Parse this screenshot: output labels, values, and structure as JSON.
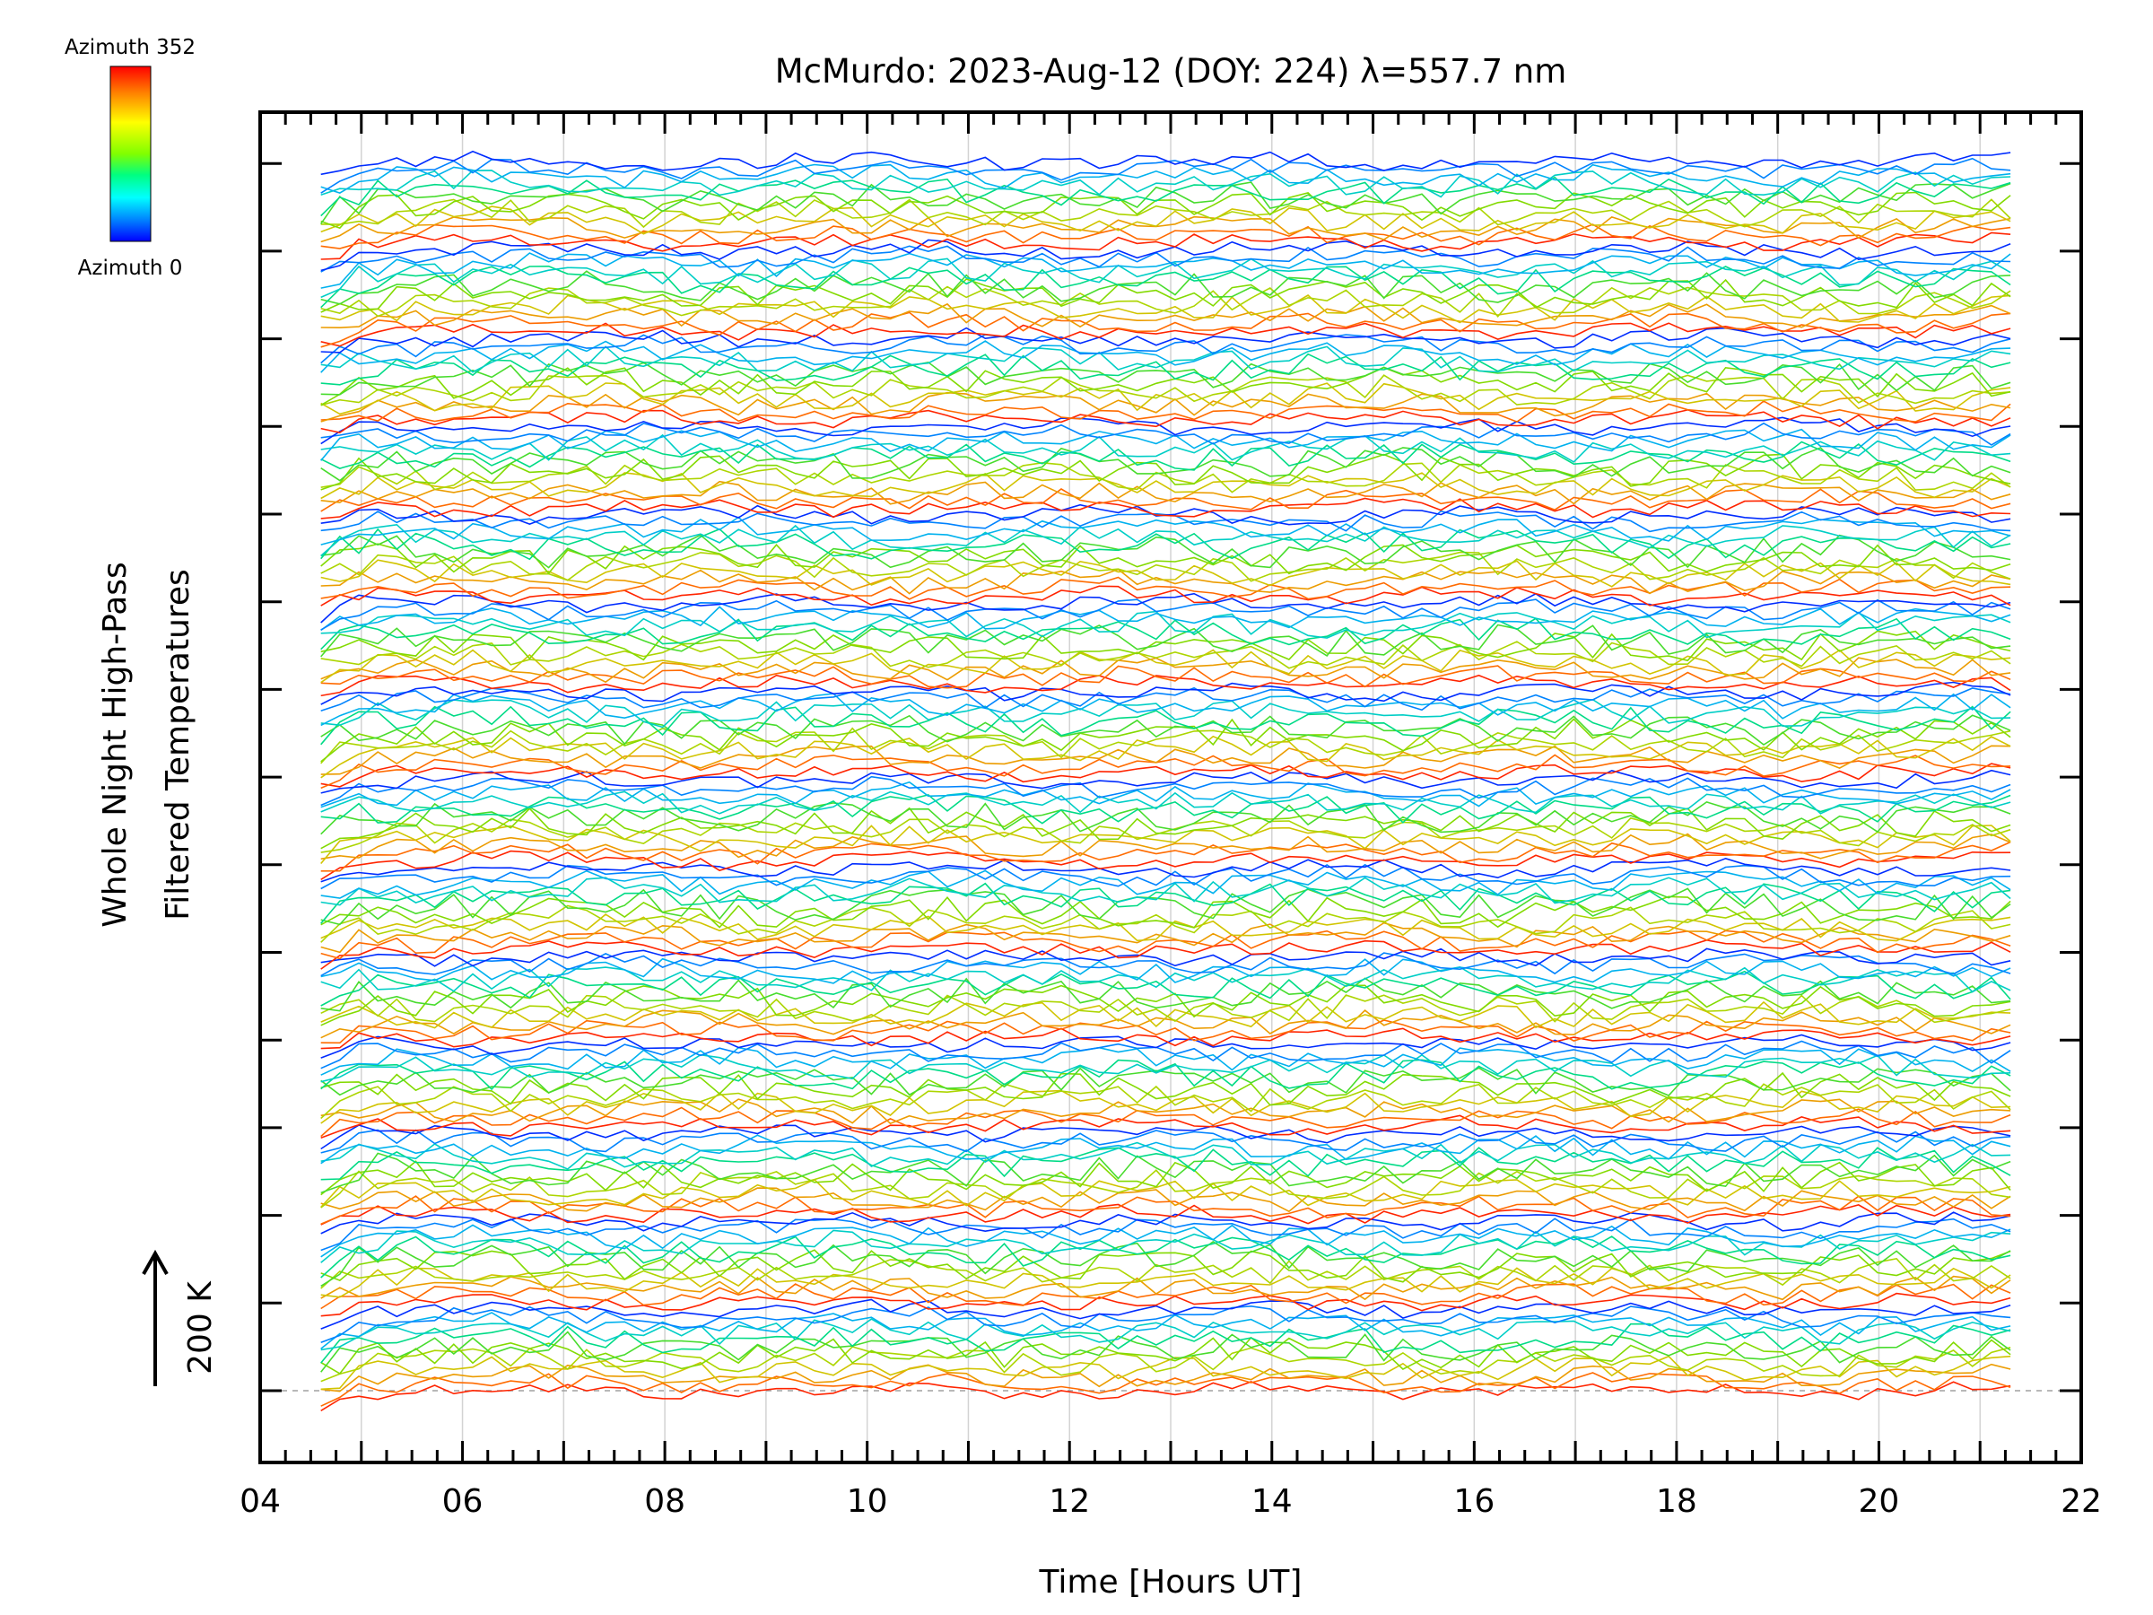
{
  "chart_data": {
    "type": "line",
    "title": "McMurdo: 2023-Aug-12 (DOY: 224) λ=557.7 nm",
    "xlabel": "Time [Hours UT]",
    "ylabel_line1": "Whole Night High-Pass",
    "ylabel_line2": "Filtered Temperatures",
    "scale_label": "200 K",
    "xlim": [
      4,
      22
    ],
    "x_ticks": [
      "04",
      "06",
      "08",
      "10",
      "12",
      "14",
      "16",
      "18",
      "20",
      "22"
    ],
    "x_tick_values": [
      4,
      6,
      8,
      10,
      12,
      14,
      16,
      18,
      20,
      22
    ],
    "time_range": [
      4.6,
      21.3
    ],
    "n_groups": 14,
    "traces_per_group": 12,
    "colorbar": {
      "top_label": "Azimuth 352",
      "bottom_label": "Azimuth 0",
      "colors": [
        "#ff0000",
        "#ff8000",
        "#ffff00",
        "#80ff00",
        "#00ff80",
        "#00ffff",
        "#0080ff",
        "#0000ff"
      ]
    },
    "colors": {
      "axis": "#000000",
      "gridline": "#d3d3d3",
      "baseline": "#a0a0a0"
    }
  }
}
